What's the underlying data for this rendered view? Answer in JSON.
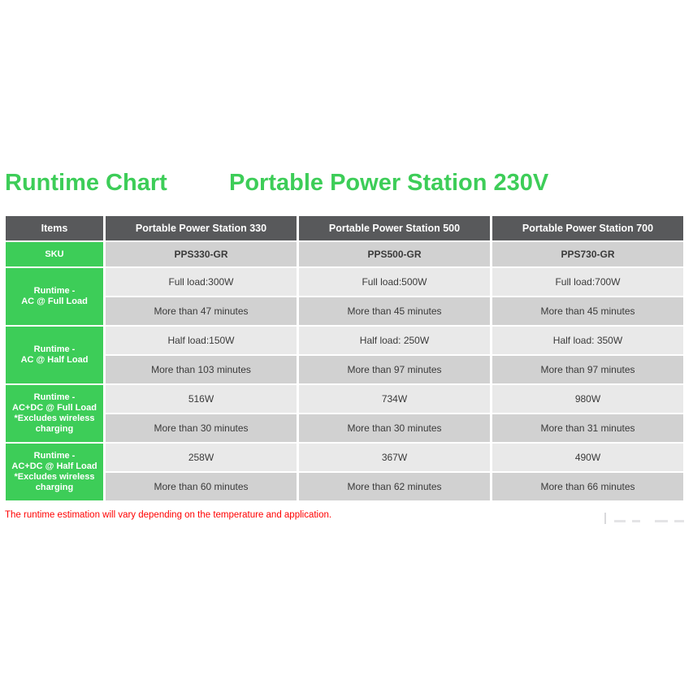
{
  "title": {
    "left": "Runtime Chart",
    "right": "Portable Power Station 230V",
    "color": "#3DCD58"
  },
  "table": {
    "header": [
      "Items",
      "Portable Power Station 330",
      "Portable Power Station 500",
      "Portable Power Station 700"
    ],
    "sku_row": {
      "label": "SKU",
      "values": [
        "PPS330-GR",
        "PPS500-GR",
        "PPS730-GR"
      ]
    },
    "groups": [
      {
        "label": "Runtime -\nAC @ Full Load",
        "row1": [
          "Full load:300W",
          "Full load:500W",
          "Full load:700W"
        ],
        "row2": [
          "More than 47 minutes",
          "More than 45 minutes",
          "More than 45 minutes"
        ]
      },
      {
        "label": "Runtime -\nAC @ Half Load",
        "row1": [
          "Half load:150W",
          "Half load: 250W",
          "Half load: 350W"
        ],
        "row2": [
          "More than 103 minutes",
          "More than 97 minutes",
          "More than 97 minutes"
        ]
      },
      {
        "label": "Runtime -\nAC+DC @ Full Load\n*Excludes wireless\ncharging",
        "row1": [
          "516W",
          "734W",
          "980W"
        ],
        "row2": [
          "More than 30 minutes",
          "More than 30 minutes",
          "More than 31 minutes"
        ]
      },
      {
        "label": "Runtime -\nAC+DC @ Half Load\n*Excludes wireless\ncharging",
        "row1": [
          "258W",
          "367W",
          "490W"
        ],
        "row2": [
          "More than 60 minutes",
          "More than 62 minutes",
          "More than 66 minutes"
        ]
      }
    ]
  },
  "footer": {
    "note": "The runtime estimation will vary depending on the temperature and application.",
    "note_color": "#FF0000",
    "watermark_icon": "faint-partial-logo"
  },
  "colors": {
    "accent_green": "#3DCD58",
    "header_gray": "#58595B",
    "row_light": "#E9E9E9",
    "row_dark": "#D1D1D1"
  }
}
